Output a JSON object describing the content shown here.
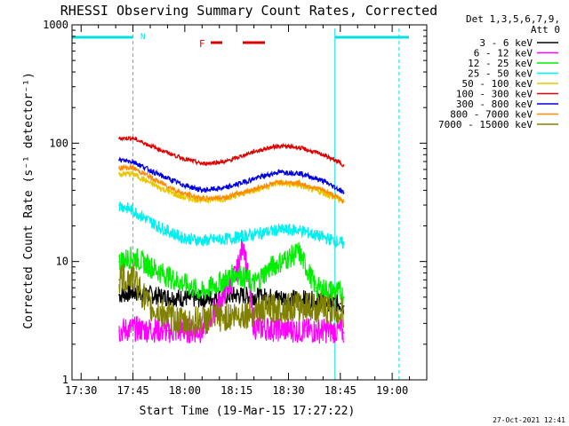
{
  "chart_data": {
    "type": "line",
    "title": "RHESSI Observing Summary Count Rates, Corrected",
    "xlabel": "Start Time (19-Mar-15 17:27:22)",
    "ylabel": "Corrected Count Rate (s⁻¹ detector⁻¹)",
    "y_scale": "log",
    "ylim": [
      1,
      1000
    ],
    "xlim_minutes": [
      17.45,
      17.53,
      19.1
    ],
    "x_ticks": [
      "17:30",
      "17:45",
      "18:00",
      "18:15",
      "18:30",
      "18:45",
      "19:00"
    ],
    "y_ticks": [
      "1",
      "10",
      "100",
      "1000"
    ],
    "x_start_min": 17.4,
    "x_end_min": 19.09,
    "legend_header": [
      "Det 1,3,5,6,7,9,",
      "Att 0"
    ],
    "flag_label": "F",
    "flag_label_color": "#dd0000",
    "footer_date": "27-Oct-2021 12:41",
    "night_marker_label": "N",
    "series": [
      {
        "name": "3 - 6 keV",
        "color": "#000000",
        "x": [
          "17:41",
          "17:45",
          "17:55",
          "18:05",
          "18:15",
          "18:25",
          "18:35",
          "18:45",
          "18:46"
        ],
        "y": [
          5.2,
          5.5,
          5.0,
          4.8,
          5.2,
          5.0,
          4.8,
          4.4,
          4.2
        ]
      },
      {
        "name": "6 - 12 keV",
        "color": "#ff00ff",
        "x": [
          "17:41",
          "17:45",
          "17:55",
          "18:05",
          "18:15",
          "18:17",
          "18:20",
          "18:25",
          "18:35",
          "18:45",
          "18:46"
        ],
        "y": [
          2.6,
          2.7,
          2.6,
          2.6,
          8,
          15,
          2.8,
          2.7,
          2.6,
          2.6,
          2.5
        ]
      },
      {
        "name": "12 - 25 keV",
        "color": "#00ee00",
        "x": [
          "17:41",
          "17:45",
          "17:55",
          "18:05",
          "18:15",
          "18:20",
          "18:25",
          "18:33",
          "18:38",
          "18:45",
          "18:46"
        ],
        "y": [
          10,
          11,
          7.5,
          5.5,
          8,
          6.5,
          9,
          12,
          6,
          5.5,
          5.0
        ]
      },
      {
        "name": "25 - 50 keV",
        "color": "#00f0f0",
        "x": [
          "17:41",
          "17:45",
          "17:52",
          "17:59",
          "18:05",
          "18:12",
          "18:20",
          "18:27",
          "18:33",
          "18:40",
          "18:45",
          "18:46"
        ],
        "y": [
          30,
          27,
          20,
          16,
          15,
          15.5,
          17,
          18.5,
          18.5,
          16,
          14.5,
          14.0
        ]
      },
      {
        "name": "50 - 100 keV",
        "color": "#e6c800",
        "x": [
          "17:41",
          "17:45",
          "17:52",
          "17:59",
          "18:05",
          "18:12",
          "18:20",
          "18:27",
          "18:33",
          "18:40",
          "18:45",
          "18:46"
        ],
        "y": [
          55,
          55,
          43,
          35,
          33,
          34,
          40,
          46,
          44,
          38,
          33,
          32
        ]
      },
      {
        "name": "100 - 300 keV",
        "color": "#dd0000",
        "x": [
          "17:41",
          "17:45",
          "17:52",
          "17:59",
          "18:05",
          "18:12",
          "18:20",
          "18:27",
          "18:33",
          "18:40",
          "18:45",
          "18:46"
        ],
        "y": [
          110,
          110,
          90,
          75,
          67,
          70,
          85,
          95,
          92,
          80,
          68,
          65
        ]
      },
      {
        "name": "300 - 800 keV",
        "color": "#0000e0",
        "x": [
          "17:41",
          "17:45",
          "17:52",
          "17:59",
          "18:05",
          "18:12",
          "18:20",
          "18:27",
          "18:33",
          "18:40",
          "18:45",
          "18:46"
        ],
        "y": [
          72,
          70,
          55,
          45,
          40,
          42,
          50,
          57,
          56,
          48,
          40,
          38
        ]
      },
      {
        "name": "800 - 7000 keV",
        "color": "#ff8c00",
        "x": [
          "17:41",
          "17:45",
          "17:52",
          "17:59",
          "18:05",
          "18:12",
          "18:20",
          "18:27",
          "18:33",
          "18:40",
          "18:45",
          "18:46"
        ],
        "y": [
          62,
          62,
          48,
          38,
          34,
          35,
          41,
          47,
          46,
          40,
          34,
          32
        ]
      },
      {
        "name": "7000 - 15000 keV",
        "color": "#808000",
        "x": [
          "17:41",
          "17:45",
          "17:50",
          "17:55",
          "18:00",
          "18:05",
          "18:15",
          "18:25",
          "18:35",
          "18:45",
          "18:46"
        ],
        "y": [
          7,
          7.5,
          4,
          3.5,
          3,
          3.2,
          3.5,
          4,
          4.2,
          3.8,
          3.6
        ]
      }
    ]
  }
}
